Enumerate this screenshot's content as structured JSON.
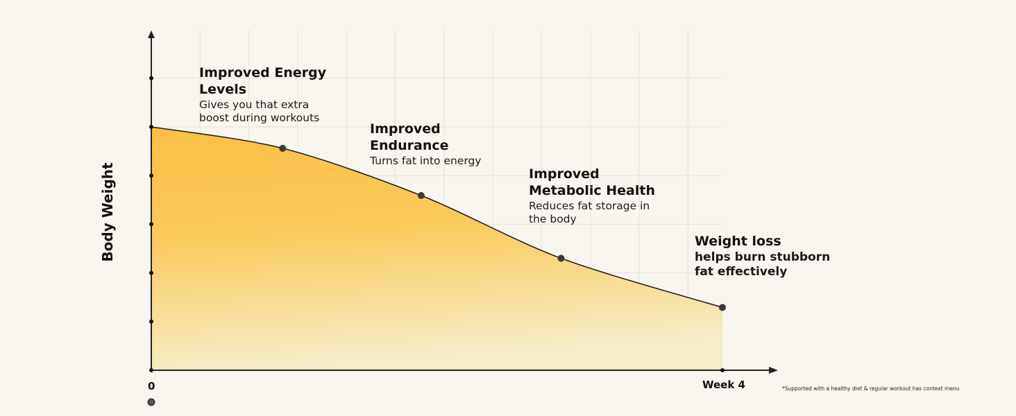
{
  "chart_data": {
    "type": "area",
    "title": "",
    "xlabel": "",
    "ylabel": "Body Weight",
    "xlim": [
      0,
      4
    ],
    "ylim": [
      0,
      6.5
    ],
    "x_tick_labels": [
      {
        "x": 0,
        "label": "0"
      },
      {
        "x": 4,
        "label": "Week 4"
      }
    ],
    "y_ticks": [
      0,
      1,
      2,
      3,
      4,
      5,
      6
    ],
    "grid": true,
    "series": [
      {
        "name": "Body Weight",
        "x": [
          0,
          0.92,
          1.89,
          2.87,
          4
        ],
        "y": [
          5.0,
          4.56,
          3.59,
          2.3,
          1.29
        ],
        "marked_points": [
          1,
          2,
          3,
          4
        ]
      }
    ],
    "annotations": [
      {
        "title": "Improved Energy Levels",
        "title_lines": [
          "Improved Energy",
          "Levels"
        ],
        "text_lines": [
          "Gives you that extra",
          "boost during workouts"
        ]
      },
      {
        "title": "Improved Endurance",
        "title_lines": [
          "Improved",
          "Endurance"
        ],
        "text_lines": [
          "Turns fat into energy"
        ]
      },
      {
        "title": "Improved Metabolic Health",
        "title_lines": [
          "Improved",
          "Metabolic Health"
        ],
        "text_lines": [
          "Reduces fat storage in",
          "the body"
        ]
      },
      {
        "title": "Weight loss",
        "title_lines": [
          "Weight loss"
        ],
        "text_lines": [
          "helps burn stubborn",
          "fat effectively"
        ]
      }
    ],
    "footnote": "*Supported with a healthy diet & regular workout has context menu"
  },
  "colors": {
    "fill_top": "#fbbf45",
    "fill_bottom": "#f4edc6",
    "line": "#222222",
    "grid": "#e6e2d6",
    "point": "#3a3a3a"
  }
}
